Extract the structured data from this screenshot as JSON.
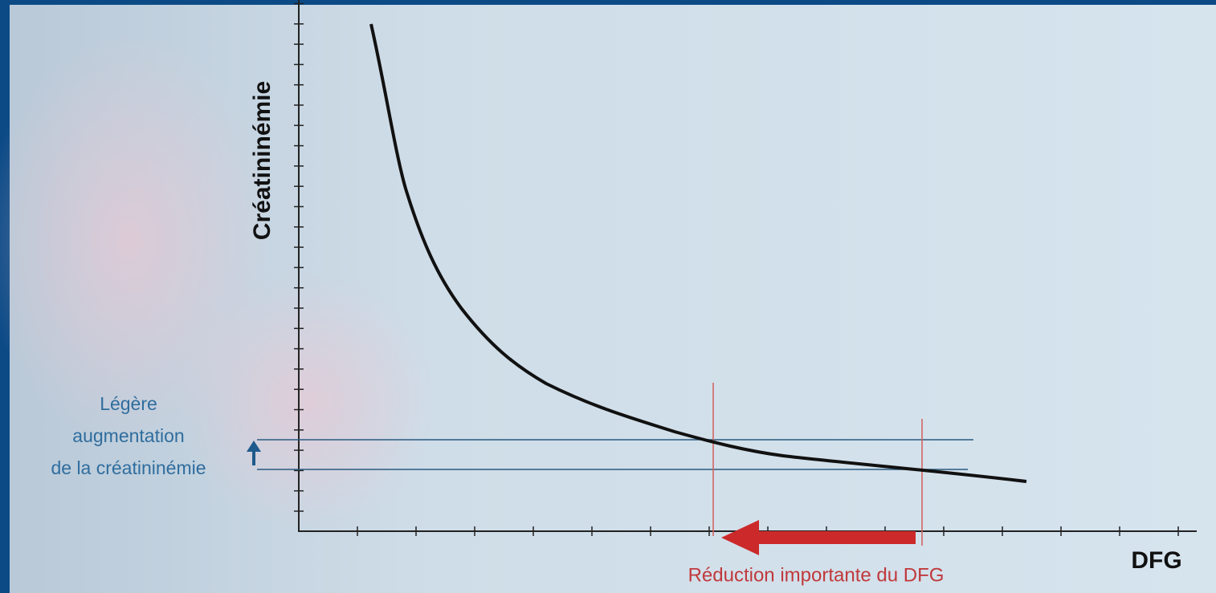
{
  "axes": {
    "y_label": "Créatininémie",
    "x_label": "DFG"
  },
  "annotations": {
    "left_note": [
      "Légère",
      "augmentation",
      "de la créatininémie"
    ],
    "bottom_note": "Réduction importante du DFG"
  }
}
